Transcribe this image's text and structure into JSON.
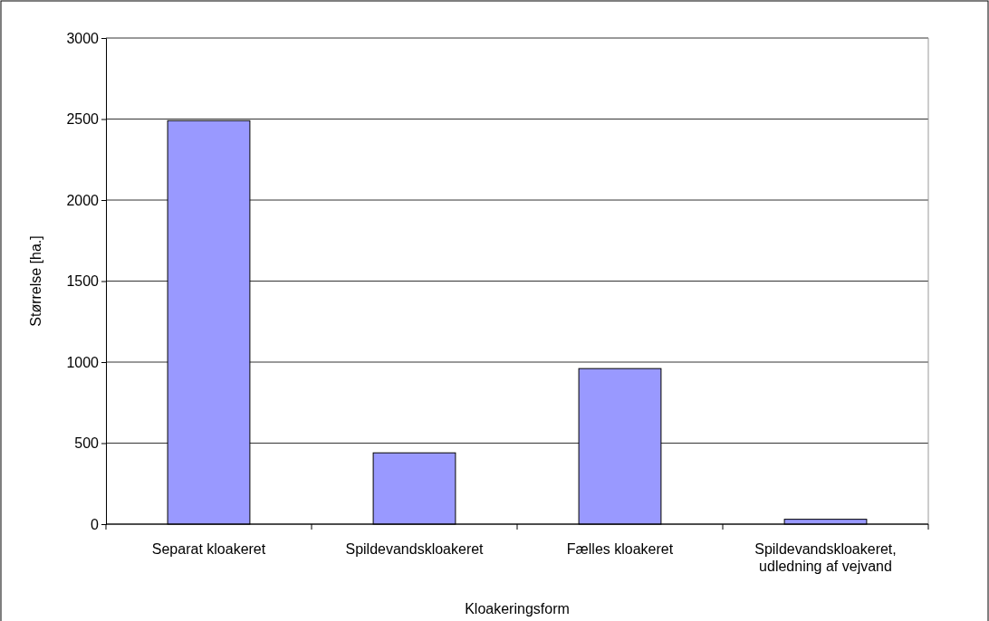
{
  "chart_data": {
    "type": "bar",
    "xlabel": "Kloakeringsform",
    "ylabel": "Størrelse [ha.]",
    "categories": [
      "Separat kloakeret",
      "Spildevandskloakeret",
      "Fælles kloakeret",
      "Spildevandskloakeret, udledning af vejvand"
    ],
    "values": [
      2490,
      440,
      960,
      30
    ],
    "color": "#9999ff",
    "ylim": [
      0,
      3000
    ],
    "yticks": [
      0,
      500,
      1000,
      1500,
      2000,
      2500,
      3000
    ],
    "grid": "y"
  }
}
